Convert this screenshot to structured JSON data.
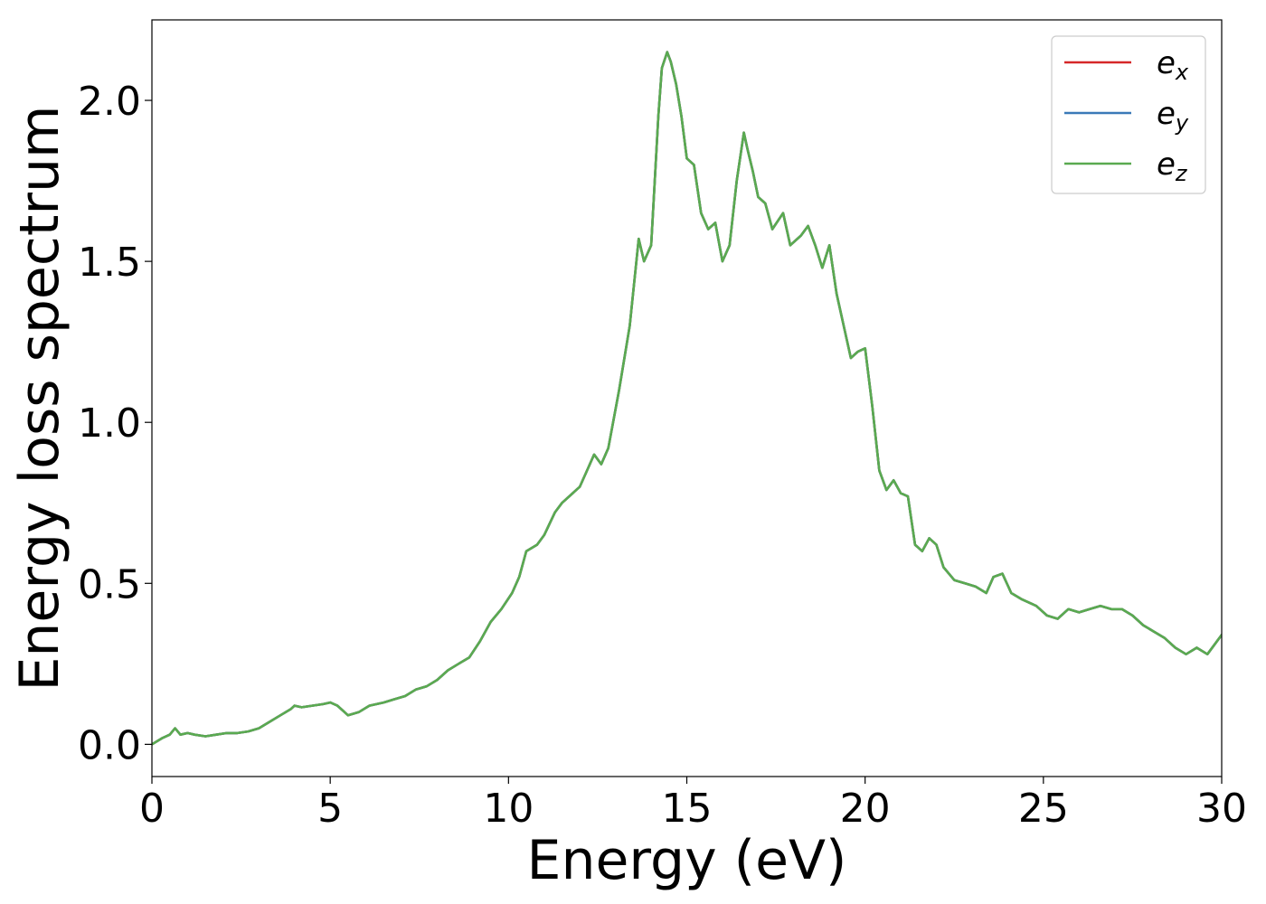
{
  "chart_data": {
    "type": "line",
    "title": "",
    "xlabel": "Energy (eV)",
    "ylabel": "Energy loss spectrum",
    "xlim": [
      0,
      30
    ],
    "ylim": [
      -0.1,
      2.25
    ],
    "x_ticks": [
      0,
      5,
      10,
      15,
      20,
      25,
      30
    ],
    "x_tick_labels": [
      "0",
      "5",
      "10",
      "15",
      "20",
      "25",
      "30"
    ],
    "y_ticks": [
      0.0,
      0.5,
      1.0,
      1.5,
      2.0
    ],
    "y_tick_labels": [
      "0.0",
      "0.5",
      "1.0",
      "1.5",
      "2.0"
    ],
    "grid": false,
    "legend_position": "top-right",
    "legend": [
      {
        "base": "e",
        "sub": "x",
        "color": "#d62728"
      },
      {
        "base": "e",
        "sub": "y",
        "color": "#3a7ab8"
      },
      {
        "base": "e",
        "sub": "z",
        "color": "#5aaa50"
      }
    ],
    "x": [
      0,
      0.3,
      0.5,
      0.65,
      0.8,
      1.0,
      1.2,
      1.5,
      1.8,
      2.1,
      2.4,
      2.7,
      3.0,
      3.3,
      3.6,
      3.9,
      4.0,
      4.2,
      4.5,
      4.8,
      5.0,
      5.2,
      5.5,
      5.8,
      6.1,
      6.5,
      6.8,
      7.1,
      7.4,
      7.7,
      8.0,
      8.3,
      8.6,
      8.9,
      9.2,
      9.5,
      9.8,
      10.1,
      10.3,
      10.5,
      10.8,
      11.0,
      11.3,
      11.5,
      11.8,
      12.0,
      12.2,
      12.4,
      12.6,
      12.8,
      13.1,
      13.4,
      13.65,
      13.8,
      14.0,
      14.2,
      14.3,
      14.45,
      14.55,
      14.7,
      14.85,
      15.0,
      15.2,
      15.4,
      15.6,
      15.8,
      16.0,
      16.2,
      16.4,
      16.6,
      16.7,
      16.85,
      17.0,
      17.2,
      17.4,
      17.7,
      17.9,
      18.2,
      18.4,
      18.6,
      18.8,
      19.0,
      19.2,
      19.4,
      19.6,
      19.8,
      20.0,
      20.2,
      20.4,
      20.6,
      20.8,
      21.0,
      21.2,
      21.4,
      21.6,
      21.8,
      22.0,
      22.2,
      22.5,
      22.8,
      23.1,
      23.4,
      23.6,
      23.85,
      24.1,
      24.4,
      24.8,
      25.1,
      25.4,
      25.7,
      26.0,
      26.3,
      26.6,
      26.9,
      27.2,
      27.5,
      27.8,
      28.1,
      28.4,
      28.7,
      29.0,
      29.3,
      29.6,
      30.0
    ],
    "series": [
      {
        "name": "e_x",
        "color": "#d62728",
        "values": [
          0.0,
          0.02,
          0.03,
          0.05,
          0.03,
          0.035,
          0.03,
          0.025,
          0.03,
          0.035,
          0.035,
          0.04,
          0.05,
          0.07,
          0.09,
          0.11,
          0.12,
          0.115,
          0.12,
          0.125,
          0.13,
          0.12,
          0.09,
          0.1,
          0.12,
          0.13,
          0.14,
          0.15,
          0.17,
          0.18,
          0.2,
          0.23,
          0.25,
          0.27,
          0.32,
          0.38,
          0.42,
          0.47,
          0.52,
          0.6,
          0.62,
          0.65,
          0.72,
          0.75,
          0.78,
          0.8,
          0.85,
          0.9,
          0.87,
          0.92,
          1.1,
          1.3,
          1.57,
          1.5,
          1.55,
          1.95,
          2.1,
          2.15,
          2.12,
          2.05,
          1.95,
          1.82,
          1.8,
          1.65,
          1.6,
          1.62,
          1.5,
          1.55,
          1.75,
          1.9,
          1.85,
          1.78,
          1.7,
          1.68,
          1.6,
          1.65,
          1.55,
          1.58,
          1.61,
          1.55,
          1.48,
          1.55,
          1.4,
          1.3,
          1.2,
          1.22,
          1.23,
          1.05,
          0.85,
          0.79,
          0.82,
          0.78,
          0.77,
          0.62,
          0.6,
          0.64,
          0.62,
          0.55,
          0.51,
          0.5,
          0.49,
          0.47,
          0.52,
          0.53,
          0.47,
          0.45,
          0.43,
          0.4,
          0.39,
          0.42,
          0.41,
          0.42,
          0.43,
          0.42,
          0.42,
          0.4,
          0.37,
          0.35,
          0.33,
          0.3,
          0.28,
          0.3,
          0.28,
          0.34
        ]
      },
      {
        "name": "e_y",
        "color": "#3a7ab8",
        "values": [
          0.0,
          0.02,
          0.03,
          0.05,
          0.03,
          0.035,
          0.03,
          0.025,
          0.03,
          0.035,
          0.035,
          0.04,
          0.05,
          0.07,
          0.09,
          0.11,
          0.12,
          0.115,
          0.12,
          0.125,
          0.13,
          0.12,
          0.09,
          0.1,
          0.12,
          0.13,
          0.14,
          0.15,
          0.17,
          0.18,
          0.2,
          0.23,
          0.25,
          0.27,
          0.32,
          0.38,
          0.42,
          0.47,
          0.52,
          0.6,
          0.62,
          0.65,
          0.72,
          0.75,
          0.78,
          0.8,
          0.85,
          0.9,
          0.87,
          0.92,
          1.1,
          1.3,
          1.57,
          1.5,
          1.55,
          1.95,
          2.1,
          2.15,
          2.12,
          2.05,
          1.95,
          1.82,
          1.8,
          1.65,
          1.6,
          1.62,
          1.5,
          1.55,
          1.75,
          1.9,
          1.85,
          1.78,
          1.7,
          1.68,
          1.6,
          1.65,
          1.55,
          1.58,
          1.61,
          1.55,
          1.48,
          1.55,
          1.4,
          1.3,
          1.2,
          1.22,
          1.23,
          1.05,
          0.85,
          0.79,
          0.82,
          0.78,
          0.77,
          0.62,
          0.6,
          0.64,
          0.62,
          0.55,
          0.51,
          0.5,
          0.49,
          0.47,
          0.52,
          0.53,
          0.47,
          0.45,
          0.43,
          0.4,
          0.39,
          0.42,
          0.41,
          0.42,
          0.43,
          0.42,
          0.42,
          0.4,
          0.37,
          0.35,
          0.33,
          0.3,
          0.28,
          0.3,
          0.28,
          0.34
        ]
      },
      {
        "name": "e_z",
        "color": "#5aaa50",
        "values": [
          0.0,
          0.02,
          0.03,
          0.05,
          0.03,
          0.035,
          0.03,
          0.025,
          0.03,
          0.035,
          0.035,
          0.04,
          0.05,
          0.07,
          0.09,
          0.11,
          0.12,
          0.115,
          0.12,
          0.125,
          0.13,
          0.12,
          0.09,
          0.1,
          0.12,
          0.13,
          0.14,
          0.15,
          0.17,
          0.18,
          0.2,
          0.23,
          0.25,
          0.27,
          0.32,
          0.38,
          0.42,
          0.47,
          0.52,
          0.6,
          0.62,
          0.65,
          0.72,
          0.75,
          0.78,
          0.8,
          0.85,
          0.9,
          0.87,
          0.92,
          1.1,
          1.3,
          1.57,
          1.5,
          1.55,
          1.95,
          2.1,
          2.15,
          2.12,
          2.05,
          1.95,
          1.82,
          1.8,
          1.65,
          1.6,
          1.62,
          1.5,
          1.55,
          1.75,
          1.9,
          1.85,
          1.78,
          1.7,
          1.68,
          1.6,
          1.65,
          1.55,
          1.58,
          1.61,
          1.55,
          1.48,
          1.55,
          1.4,
          1.3,
          1.2,
          1.22,
          1.23,
          1.05,
          0.85,
          0.79,
          0.82,
          0.78,
          0.77,
          0.62,
          0.6,
          0.64,
          0.62,
          0.55,
          0.51,
          0.5,
          0.49,
          0.47,
          0.52,
          0.53,
          0.47,
          0.45,
          0.43,
          0.4,
          0.39,
          0.42,
          0.41,
          0.42,
          0.43,
          0.42,
          0.42,
          0.4,
          0.37,
          0.35,
          0.33,
          0.3,
          0.28,
          0.3,
          0.28,
          0.34
        ]
      }
    ]
  }
}
